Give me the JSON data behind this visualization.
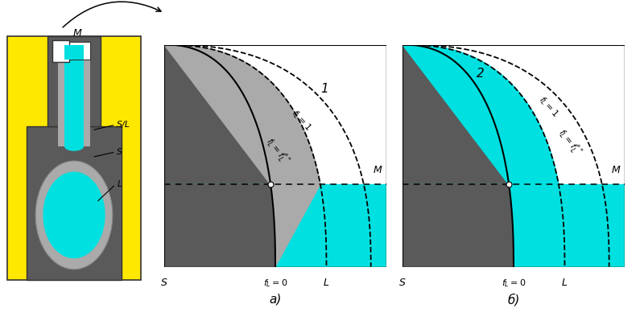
{
  "fig_width": 8.0,
  "fig_height": 3.99,
  "bg_color": "#ffffff",
  "yellow_color": "#FFE800",
  "gray_dark_color": "#5a5a5a",
  "gray_light_color": "#aaaaaa",
  "cyan_color": "#00E0E0",
  "caption_a": "a)",
  "caption_b": "б)",
  "label_M": "M",
  "label_S": "S",
  "label_L": "L",
  "label_SL": "S/L",
  "label_fL0": "$f_L=0$",
  "label_fL1": "$f_L=1$",
  "label_fLss": "$f_L=f_L^{**}$",
  "label_1": "1",
  "label_2": "2",
  "m_level": 0.37
}
